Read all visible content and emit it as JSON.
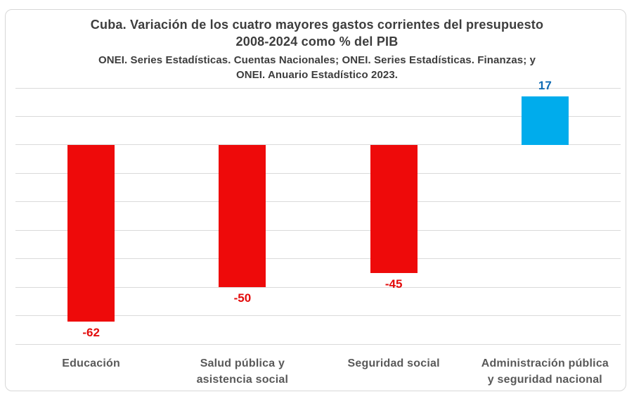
{
  "header": {
    "title_lines": [
      "Cuba. Variación de los cuatro mayores gastos corrientes del presupuesto",
      "2008-2024 como % del PIB"
    ],
    "subtitle_lines": [
      "ONEI. Series Estadísticas. Cuentas Nacionales; ONEI. Series Estadísticas. Finanzas; y",
      "ONEI. Anuario Estadístico 2023."
    ]
  },
  "chart_data": {
    "type": "bar",
    "title": "Cuba. Variación de los cuatro mayores gastos corrientes del presupuesto 2008-2024 como % del PIB",
    "subtitle": "ONEI. Series Estadísticas. Cuentas Nacionales; ONEI. Series Estadísticas. Finanzas; y ONEI. Anuario Estadístico 2023.",
    "categories": [
      "Educación",
      "Salud pública y asistencia social",
      "Seguridad social",
      "Administración pública y seguridad nacional"
    ],
    "category_lines": [
      [
        "Educación"
      ],
      [
        "Salud pública y",
        "asistencia social"
      ],
      [
        "Seguridad social"
      ],
      [
        "Administración pública",
        "y seguridad nacional"
      ]
    ],
    "values": [
      -62,
      -50,
      -45,
      17
    ],
    "data_labels": [
      "-62",
      "-50",
      "-45",
      "17"
    ],
    "ylabel": "",
    "xlabel": "",
    "ylim": [
      -70,
      20
    ],
    "gridline_step": 10,
    "grid": true,
    "legend": false,
    "y_axis_tick_labels_visible": false,
    "colors": {
      "negative_bar": "#ee0a0a",
      "positive_bar": "#00acec",
      "negative_value_label": "#e30b0b",
      "positive_value_label": "#0f6bb4",
      "category_label": "#595959",
      "title_text": "#3d3d3d",
      "gridline": "#dadada",
      "frame_border": "#d7d7d7"
    }
  }
}
